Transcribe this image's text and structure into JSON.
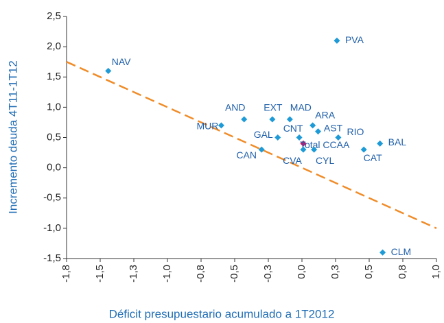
{
  "chart_data": {
    "type": "scatter",
    "xlabel": "Déficit presupuestario acumulado a 1T2012",
    "ylabel": "Incremento deuda 4T11-1T12",
    "labels": [
      "NAV",
      "PVA",
      "AND",
      "EXT",
      "MAD",
      "MUR",
      "ARA",
      "AST",
      "GAL",
      "CNT",
      "RIO",
      "Total CCAA",
      "BAL",
      "CAT",
      "CAN",
      "CVA",
      "CYL",
      "CLM"
    ],
    "x": [
      -1.44,
      0.26,
      -0.43,
      -0.22,
      -0.09,
      -0.6,
      0.08,
      0.12,
      -0.18,
      -0.02,
      0.27,
      0.01,
      0.58,
      0.46,
      -0.3,
      0.01,
      0.09,
      0.6
    ],
    "values": [
      1.6,
      2.1,
      0.8,
      0.8,
      0.8,
      0.7,
      0.7,
      0.6,
      0.5,
      0.5,
      0.5,
      0.4,
      0.4,
      0.3,
      0.3,
      0.3,
      0.3,
      -1.4
    ],
    "point_colors": [
      "#1e9bd7",
      "#1e9bd7",
      "#1e9bd7",
      "#1e9bd7",
      "#1e9bd7",
      "#1e9bd7",
      "#1e9bd7",
      "#1e9bd7",
      "#1e9bd7",
      "#1e9bd7",
      "#1e9bd7",
      "#c8146e",
      "#1e9bd7",
      "#1e9bd7",
      "#1e9bd7",
      "#1e9bd7",
      "#1e9bd7",
      "#1e9bd7"
    ],
    "trendline": {
      "x": [
        -1.75,
        1.0
      ],
      "y": [
        1.75,
        -1.0
      ],
      "color": "#f08c28"
    },
    "xlim": [
      -1.75,
      1.0
    ],
    "xticks": [
      {
        "value": -1.75,
        "label": "-1,8"
      },
      {
        "value": -1.5,
        "label": "-1,5"
      },
      {
        "value": -1.25,
        "label": "-1,3"
      },
      {
        "value": -1.0,
        "label": "-1,0"
      },
      {
        "value": -0.75,
        "label": "-0,8"
      },
      {
        "value": -0.5,
        "label": "-0,5"
      },
      {
        "value": -0.25,
        "label": "-0,3"
      },
      {
        "value": 0,
        "label": "0,0"
      },
      {
        "value": 0.25,
        "label": "0,3"
      },
      {
        "value": 0.5,
        "label": "0,5"
      },
      {
        "value": 0.75,
        "label": "0,8"
      },
      {
        "value": 1.0,
        "label": "1,0"
      }
    ],
    "ylim": [
      -1.5,
      2.5
    ],
    "yticks": [
      {
        "value": 2.5,
        "label": "2,5"
      },
      {
        "value": 2.0,
        "label": "2,0"
      },
      {
        "value": 1.5,
        "label": "1,5"
      },
      {
        "value": 1.0,
        "label": "1,0"
      },
      {
        "value": 0.5,
        "label": "0,5"
      },
      {
        "value": 0,
        "label": "0,0"
      },
      {
        "value": -0.5,
        "label": "-0,5"
      },
      {
        "value": -1.0,
        "label": "-1,0"
      },
      {
        "value": -1.5,
        "label": "-1,5"
      }
    ],
    "grid": false
  }
}
